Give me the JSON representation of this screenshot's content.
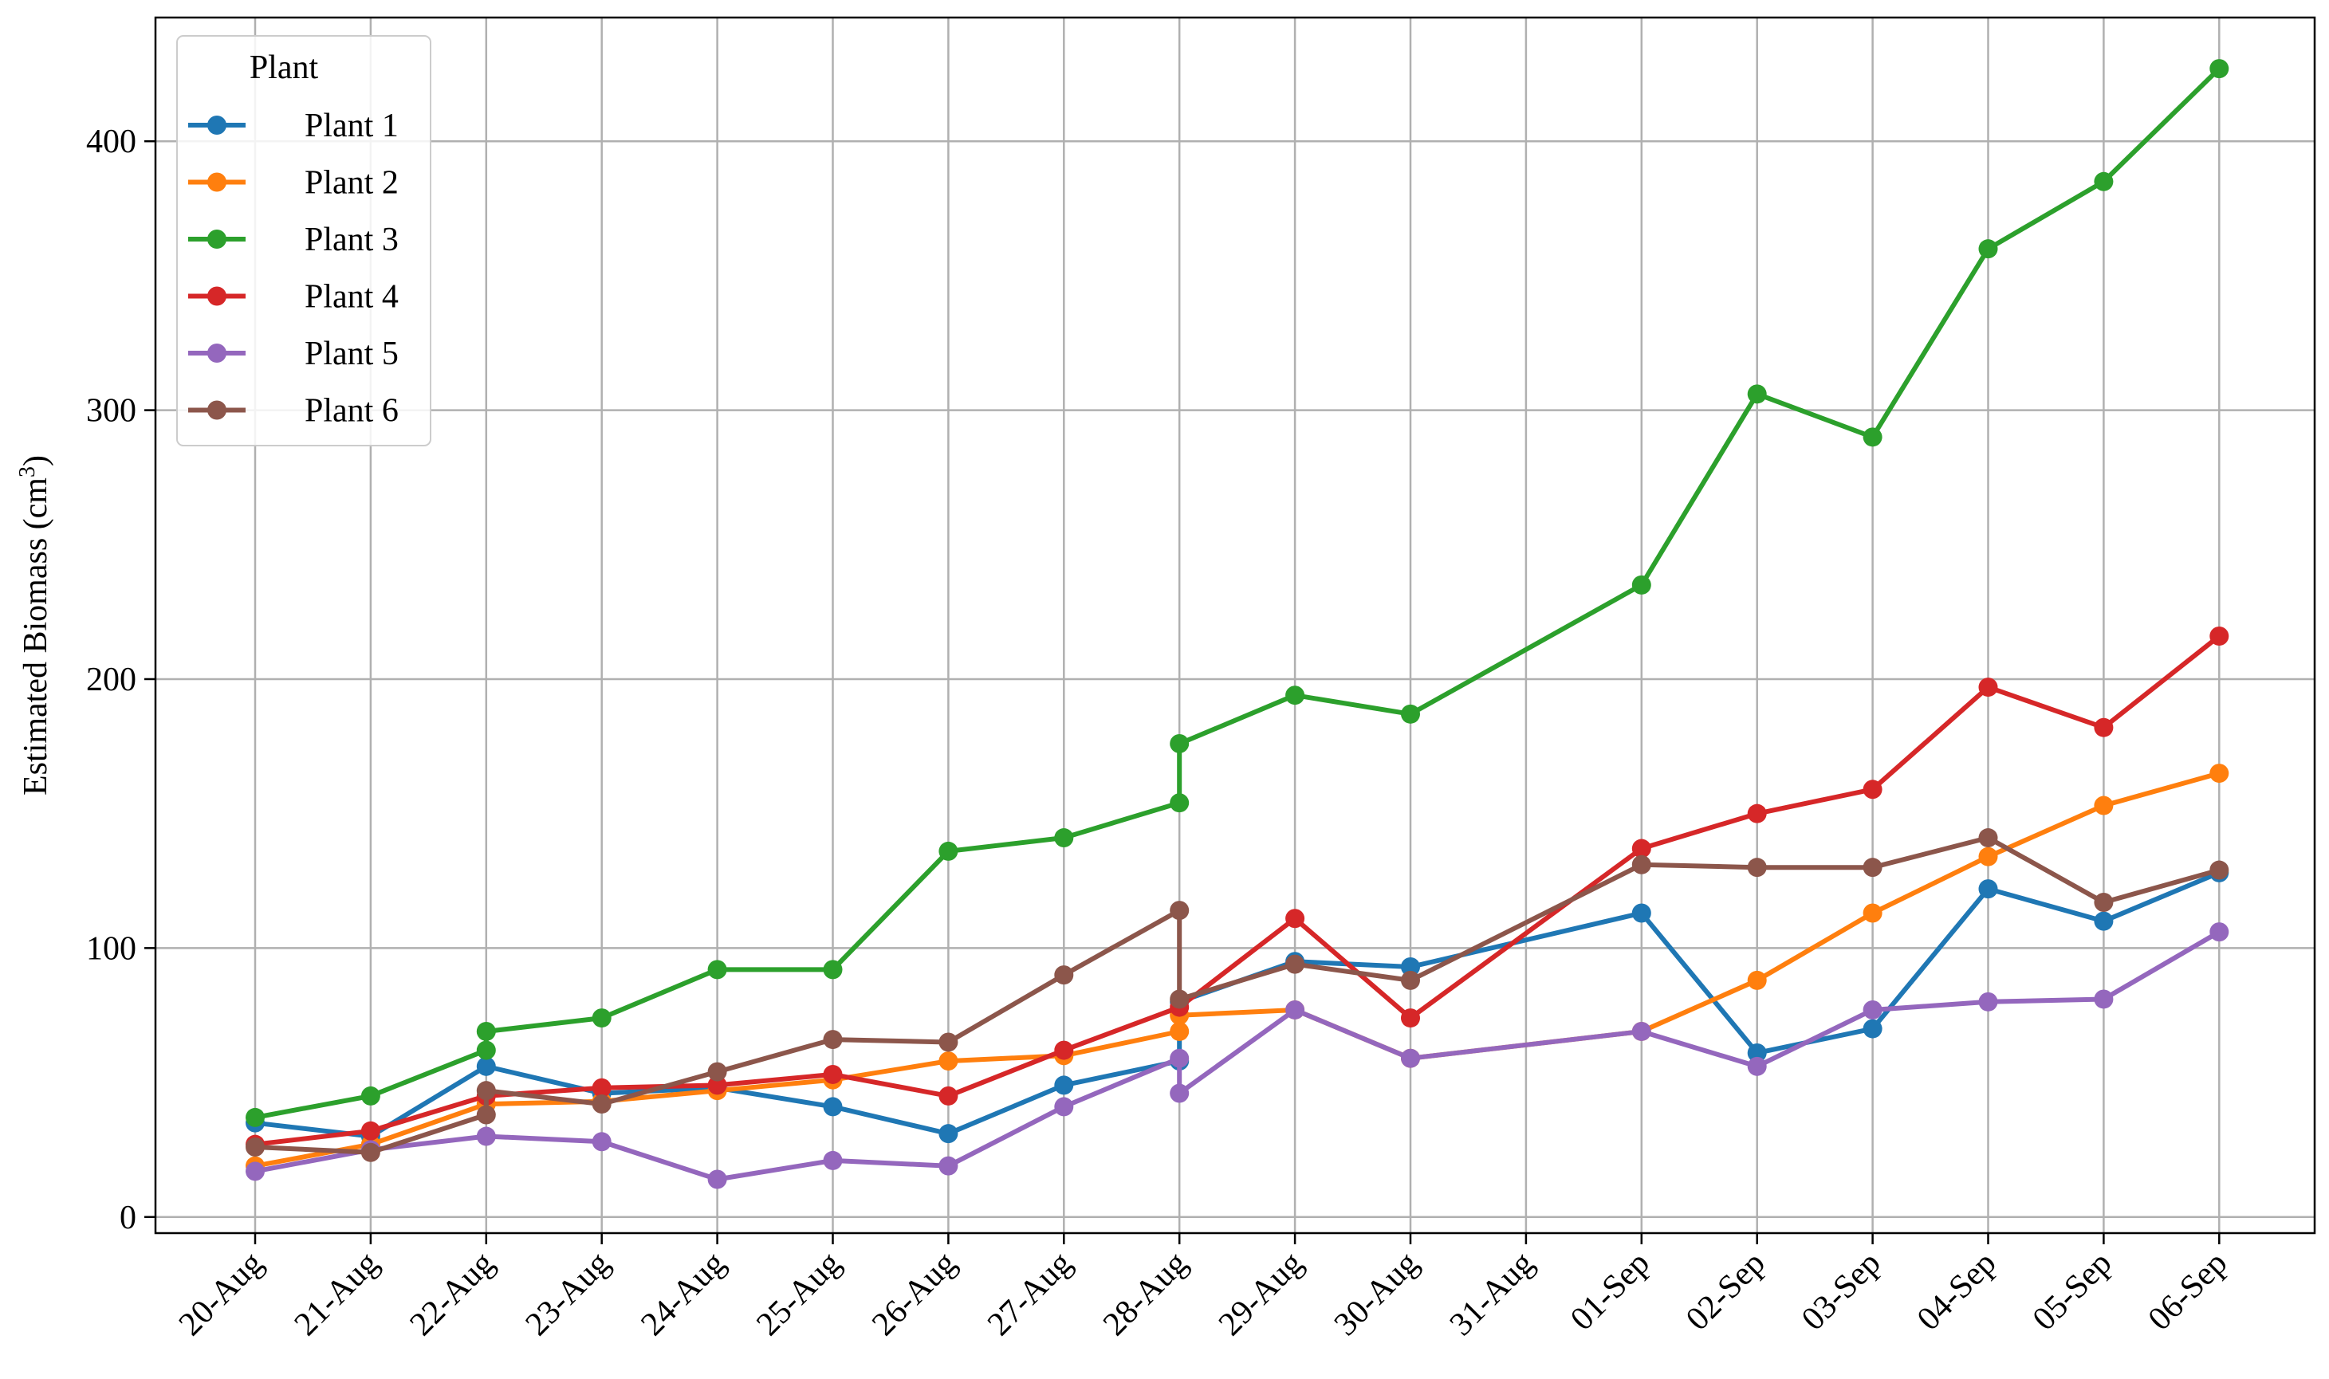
{
  "chart_data": {
    "type": "line",
    "ylabel": "Estimated Biomass (cm",
    "ylabel_sup": "3",
    "ylabel_end": ")",
    "ylim": [
      -6,
      446
    ],
    "yticks": [
      0,
      100,
      200,
      300,
      400
    ],
    "x_categories": [
      "20-Aug",
      "21-Aug",
      "22-Aug",
      "23-Aug",
      "24-Aug",
      "25-Aug",
      "26-Aug",
      "27-Aug",
      "28-Aug",
      "29-Aug",
      "30-Aug",
      "31-Aug",
      "01-Sep",
      "02-Sep",
      "03-Sep",
      "04-Sep",
      "05-Sep",
      "06-Sep"
    ],
    "grid": true,
    "legend": {
      "title": "Plant",
      "placement": "top-left"
    },
    "series": [
      {
        "name": "Plant 1",
        "color": "#1f77b4",
        "points": [
          [
            0,
            35
          ],
          [
            1,
            30
          ],
          [
            2,
            56
          ],
          [
            3,
            46
          ],
          [
            4,
            48
          ],
          [
            5,
            41
          ],
          [
            6,
            31
          ],
          [
            7,
            49
          ],
          [
            8,
            58
          ],
          [
            8,
            80
          ],
          [
            9,
            95
          ],
          [
            10,
            93
          ],
          [
            12,
            113
          ],
          [
            13,
            61
          ],
          [
            14,
            70
          ],
          [
            15,
            122
          ],
          [
            16,
            110
          ],
          [
            17,
            128
          ]
        ]
      },
      {
        "name": "Plant 2",
        "color": "#ff7f0e",
        "points": [
          [
            0,
            19
          ],
          [
            1,
            27
          ],
          [
            2,
            42
          ],
          [
            3,
            43
          ],
          [
            4,
            47
          ],
          [
            5,
            51
          ],
          [
            6,
            58
          ],
          [
            7,
            60
          ],
          [
            8,
            69
          ],
          [
            8,
            75
          ],
          [
            9,
            77
          ],
          [
            10,
            59
          ],
          [
            12,
            69
          ],
          [
            13,
            88
          ],
          [
            14,
            113
          ],
          [
            15,
            134
          ],
          [
            16,
            153
          ],
          [
            17,
            165
          ]
        ]
      },
      {
        "name": "Plant 3",
        "color": "#2ca02c",
        "points": [
          [
            0,
            37
          ],
          [
            1,
            45
          ],
          [
            2,
            62
          ],
          [
            2,
            69
          ],
          [
            3,
            74
          ],
          [
            4,
            92
          ],
          [
            5,
            92
          ],
          [
            6,
            136
          ],
          [
            7,
            141
          ],
          [
            8,
            154
          ],
          [
            8,
            176
          ],
          [
            9,
            194
          ],
          [
            10,
            187
          ],
          [
            12,
            235
          ],
          [
            13,
            306
          ],
          [
            14,
            290
          ],
          [
            15,
            360
          ],
          [
            16,
            385
          ],
          [
            17,
            427
          ]
        ]
      },
      {
        "name": "Plant 4",
        "color": "#d62728",
        "points": [
          [
            0,
            27
          ],
          [
            1,
            32
          ],
          [
            2,
            45
          ],
          [
            3,
            48
          ],
          [
            4,
            49
          ],
          [
            5,
            53
          ],
          [
            6,
            45
          ],
          [
            7,
            62
          ],
          [
            8,
            78
          ],
          [
            9,
            111
          ],
          [
            10,
            74
          ],
          [
            12,
            137
          ],
          [
            13,
            150
          ],
          [
            14,
            159
          ],
          [
            15,
            197
          ],
          [
            16,
            182
          ],
          [
            17,
            216
          ]
        ]
      },
      {
        "name": "Plant 5",
        "color": "#9467bd",
        "points": [
          [
            0,
            17
          ],
          [
            1,
            25
          ],
          [
            2,
            30
          ],
          [
            3,
            28
          ],
          [
            4,
            14
          ],
          [
            5,
            21
          ],
          [
            6,
            19
          ],
          [
            7,
            41
          ],
          [
            8,
            59
          ],
          [
            8,
            46
          ],
          [
            9,
            77
          ],
          [
            10,
            59
          ],
          [
            12,
            69
          ],
          [
            13,
            56
          ],
          [
            14,
            77
          ],
          [
            15,
            80
          ],
          [
            16,
            81
          ],
          [
            17,
            106
          ]
        ]
      },
      {
        "name": "Plant 6",
        "color": "#8c564b",
        "points": [
          [
            0,
            26
          ],
          [
            1,
            24
          ],
          [
            2,
            38
          ],
          [
            2,
            47
          ],
          [
            3,
            42
          ],
          [
            4,
            54
          ],
          [
            5,
            66
          ],
          [
            6,
            65
          ],
          [
            7,
            90
          ],
          [
            8,
            114
          ],
          [
            8,
            81
          ],
          [
            9,
            94
          ],
          [
            10,
            88
          ],
          [
            12,
            131
          ],
          [
            13,
            130
          ],
          [
            14,
            130
          ],
          [
            15,
            141
          ],
          [
            16,
            117
          ],
          [
            17,
            129
          ]
        ]
      }
    ]
  }
}
